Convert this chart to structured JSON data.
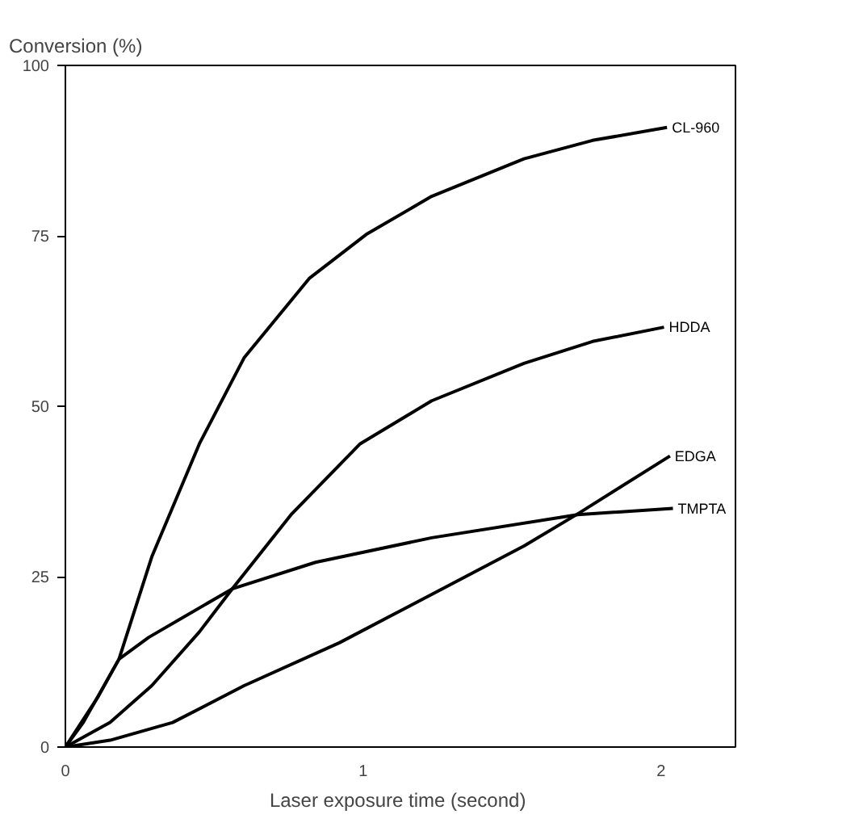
{
  "chart_data": {
    "type": "line",
    "xlabel": "Laser exposure time  (second)",
    "ylabel": "Conversion (%)",
    "xlim": [
      0,
      2.25
    ],
    "ylim": [
      0,
      100
    ],
    "xticks": [
      0,
      1,
      2
    ],
    "yticks": [
      0,
      25,
      50,
      75,
      100
    ],
    "grid": false,
    "marker": "none",
    "line_style": "solid",
    "series": [
      {
        "name": "CL-960",
        "color": "#000000",
        "x": [
          0,
          0.06,
          0.18,
          0.29,
          0.45,
          0.6,
          0.82,
          1.01,
          1.23,
          1.54,
          1.77,
          2.02
        ],
        "values": [
          0,
          3.6,
          12.9,
          27.9,
          44.5,
          57.1,
          68.8,
          75.2,
          80.8,
          86.3,
          89.0,
          90.9
        ]
      },
      {
        "name": "HDDA",
        "color": "#000000",
        "x": [
          0,
          0.15,
          0.29,
          0.45,
          0.56,
          0.76,
          0.99,
          1.23,
          1.54,
          1.77,
          2.01
        ],
        "values": [
          0,
          3.6,
          9.0,
          16.9,
          23.2,
          34.2,
          44.5,
          50.8,
          56.3,
          59.5,
          61.6
        ]
      },
      {
        "name": "EDGA",
        "color": "#000000",
        "x": [
          0,
          0.15,
          0.36,
          0.6,
          0.92,
          1.23,
          1.54,
          1.72,
          2.03
        ],
        "values": [
          0,
          1.0,
          3.6,
          9.0,
          15.3,
          22.4,
          29.5,
          34.2,
          42.7
        ]
      },
      {
        "name": "TMPTA",
        "color": "#000000",
        "x": [
          0,
          0.11,
          0.18,
          0.28,
          0.56,
          0.84,
          1.23,
          1.72,
          2.04
        ],
        "values": [
          0,
          7.4,
          12.9,
          16.1,
          23.2,
          27.1,
          30.7,
          34.1,
          35.0
        ]
      }
    ]
  }
}
